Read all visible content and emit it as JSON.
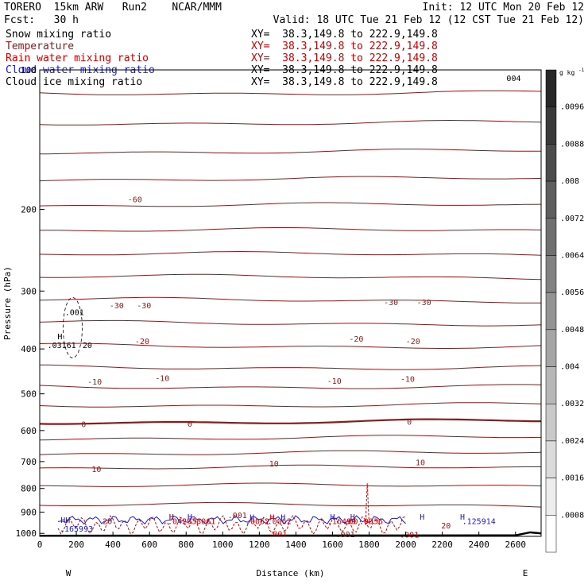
{
  "header": {
    "line1_left": "TORERO  15km ARW   Run2    NCAR/MMM",
    "line1_right": "Init: 12 UTC Mon 20 Feb 12",
    "line2_left": "Fcst:   30 h",
    "line2_right": "Valid: 18 UTC Tue 21 Feb 12 (12 CST Tue 21 Feb 12)"
  },
  "legend": [
    {
      "name": "Snow mixing ratio",
      "xy": "XY=  38.3,149.8 to 222.9,149.8",
      "color": "#000000",
      "xy_color": "#000000"
    },
    {
      "name": "Temperature",
      "xy": "XY=  38.3,149.8 to 222.9,149.8",
      "color": "#8b1a1a",
      "xy_color": "#cc0000"
    },
    {
      "name": "Rain water mixing ratio",
      "xy": "XY=  38.3,149.8 to 222.9,149.8",
      "color": "#cc0000",
      "xy_color": "#cc0000"
    },
    {
      "name": "Cloud water mixing ratio",
      "xy": "XY=  38.3,149.8 to 222.9,149.8",
      "color": "#1a1acc",
      "xy_color": "#000000"
    },
    {
      "name": "Cloud ice mixing ratio",
      "xy": "XY=  38.3,149.8 to 222.9,149.8",
      "color": "#000000",
      "xy_color": "#000000"
    }
  ],
  "chart_data": {
    "type": "contour-cross-section",
    "xlabel": "Distance (km)",
    "ylabel": "Pressure (hPa)",
    "x_ticks": [
      0,
      200,
      400,
      600,
      800,
      1000,
      1200,
      1400,
      1600,
      1800,
      2000,
      2200,
      2400,
      2600
    ],
    "xlim": [
      0,
      2740
    ],
    "y_ticks": [
      100,
      200,
      300,
      400,
      500,
      600,
      700,
      800,
      900,
      1000
    ],
    "ylim": [
      100,
      1015
    ],
    "x_end_labels": [
      "W",
      "E"
    ],
    "colorbar": {
      "unit": "g kg",
      "unit_sup": "-1",
      "tick_labels": [
        ".0096",
        ".0088",
        ".008",
        ".0072",
        ".0064",
        ".0056",
        ".0048",
        ".004",
        ".0032",
        ".0024",
        ".0016",
        ".0008"
      ]
    },
    "temperature_isotherm_labels": [
      {
        "label": "-60",
        "x": 520,
        "p": 190
      },
      {
        "label": "-30",
        "x": 420,
        "p": 322
      },
      {
        "label": "-30",
        "x": 570,
        "p": 322
      },
      {
        "label": "-30",
        "x": 1920,
        "p": 317
      },
      {
        "label": "-30",
        "x": 2100,
        "p": 317
      },
      {
        "label": "-20",
        "x": 560,
        "p": 384
      },
      {
        "label": "-20",
        "x": 1730,
        "p": 380
      },
      {
        "label": "-20",
        "x": 2040,
        "p": 384
      },
      {
        "label": "-10",
        "x": 300,
        "p": 470
      },
      {
        "label": "-10",
        "x": 670,
        "p": 462
      },
      {
        "label": "-10",
        "x": 1610,
        "p": 468
      },
      {
        "label": "-10",
        "x": 2010,
        "p": 464
      },
      {
        "label": "0",
        "x": 240,
        "p": 580
      },
      {
        "label": "0",
        "x": 820,
        "p": 579
      },
      {
        "label": "0",
        "x": 2020,
        "p": 574
      },
      {
        "label": "10",
        "x": 310,
        "p": 725
      },
      {
        "label": "10",
        "x": 1280,
        "p": 706
      },
      {
        "label": "10",
        "x": 2080,
        "p": 702
      },
      {
        "label": "20",
        "x": 370,
        "p": 940
      },
      {
        "label": "20",
        "x": 2220,
        "p": 960
      }
    ],
    "ice_labels": [
      {
        "label": ".001",
        "x": 190,
        "p": 333
      },
      {
        "label": "H",
        "x": 110,
        "p": 375
      },
      {
        "label": ".03161",
        "x": 120,
        "p": 392
      },
      {
        "label": "20",
        "x": 260,
        "p": 392
      }
    ],
    "cloud_water_labels": [
      {
        "label": "HH",
        "x": 140,
        "p": 935
      },
      {
        "label": ".165993",
        "x": 200,
        "p": 975
      },
      {
        "label": "H",
        "x": 720,
        "p": 920
      },
      {
        "label": "H",
        "x": 820,
        "p": 920
      },
      {
        "label": "H",
        "x": 1160,
        "p": 922
      },
      {
        "label": "H",
        "x": 1330,
        "p": 922
      },
      {
        "label": "H",
        "x": 1600,
        "p": 920
      },
      {
        "label": "H",
        "x": 1710,
        "p": 920
      },
      {
        "label": "H",
        "x": 2090,
        "p": 920
      },
      {
        "label": "H",
        "x": 2310,
        "p": 920
      },
      {
        "label": ".125914",
        "x": 2400,
        "p": 940
      }
    ],
    "rain_labels": [
      {
        "label": ".001",
        "x": 1080,
        "p": 912
      },
      {
        "label": "H",
        "x": 720,
        "p": 920
      },
      {
        "label": "H",
        "x": 1270,
        "p": 922
      },
      {
        "label": ".042938061",
        "x": 830,
        "p": 940
      },
      {
        "label": ".0062",
        "x": 1190,
        "p": 940
      },
      {
        "label": ".0062",
        "x": 1310,
        "p": 940
      },
      {
        "label": ".00",
        "x": 1700,
        "p": 940
      },
      {
        "label": ".16499",
        "x": 1650,
        "p": 940
      },
      {
        "label": ".0036",
        "x": 1810,
        "p": 940
      },
      {
        "label": ".001",
        "x": 1300,
        "p": 1002
      },
      {
        "label": ".001",
        "x": 1670,
        "p": 1004
      },
      {
        "label": ".001",
        "x": 2020,
        "p": 1005
      }
    ],
    "snow_labels": [
      {
        "label": "004",
        "x": 2590,
        "p": 104
      }
    ]
  }
}
